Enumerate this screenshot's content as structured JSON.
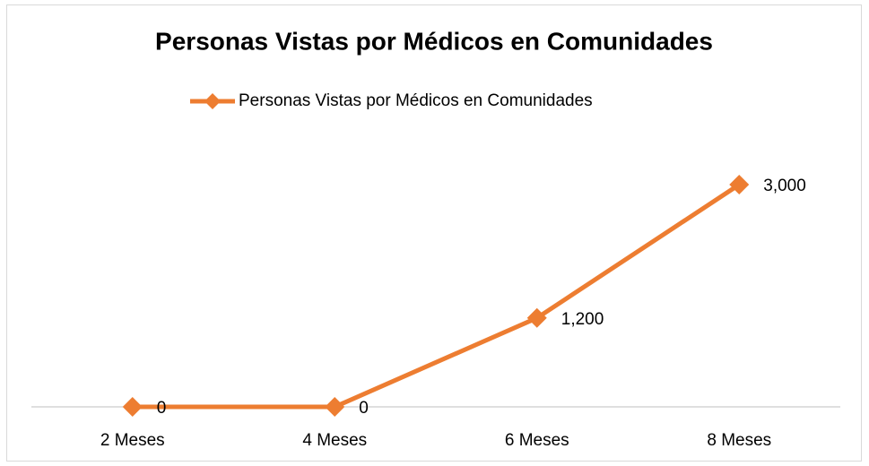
{
  "chart_data": {
    "type": "line",
    "title": "Personas Vistas por Médicos en Comunidades",
    "categories": [
      "2 Meses",
      "4 Meses",
      "6 Meses",
      "8 Meses"
    ],
    "series": [
      {
        "name": "Personas Vistas por Médicos en Comunidades",
        "color": "#ed7d31",
        "values": [
          0,
          0,
          1200,
          3000
        ],
        "value_labels": [
          "0",
          "0",
          "1,200",
          "3,000"
        ]
      }
    ],
    "ylim": [
      0,
      3000
    ],
    "legend": "top"
  }
}
